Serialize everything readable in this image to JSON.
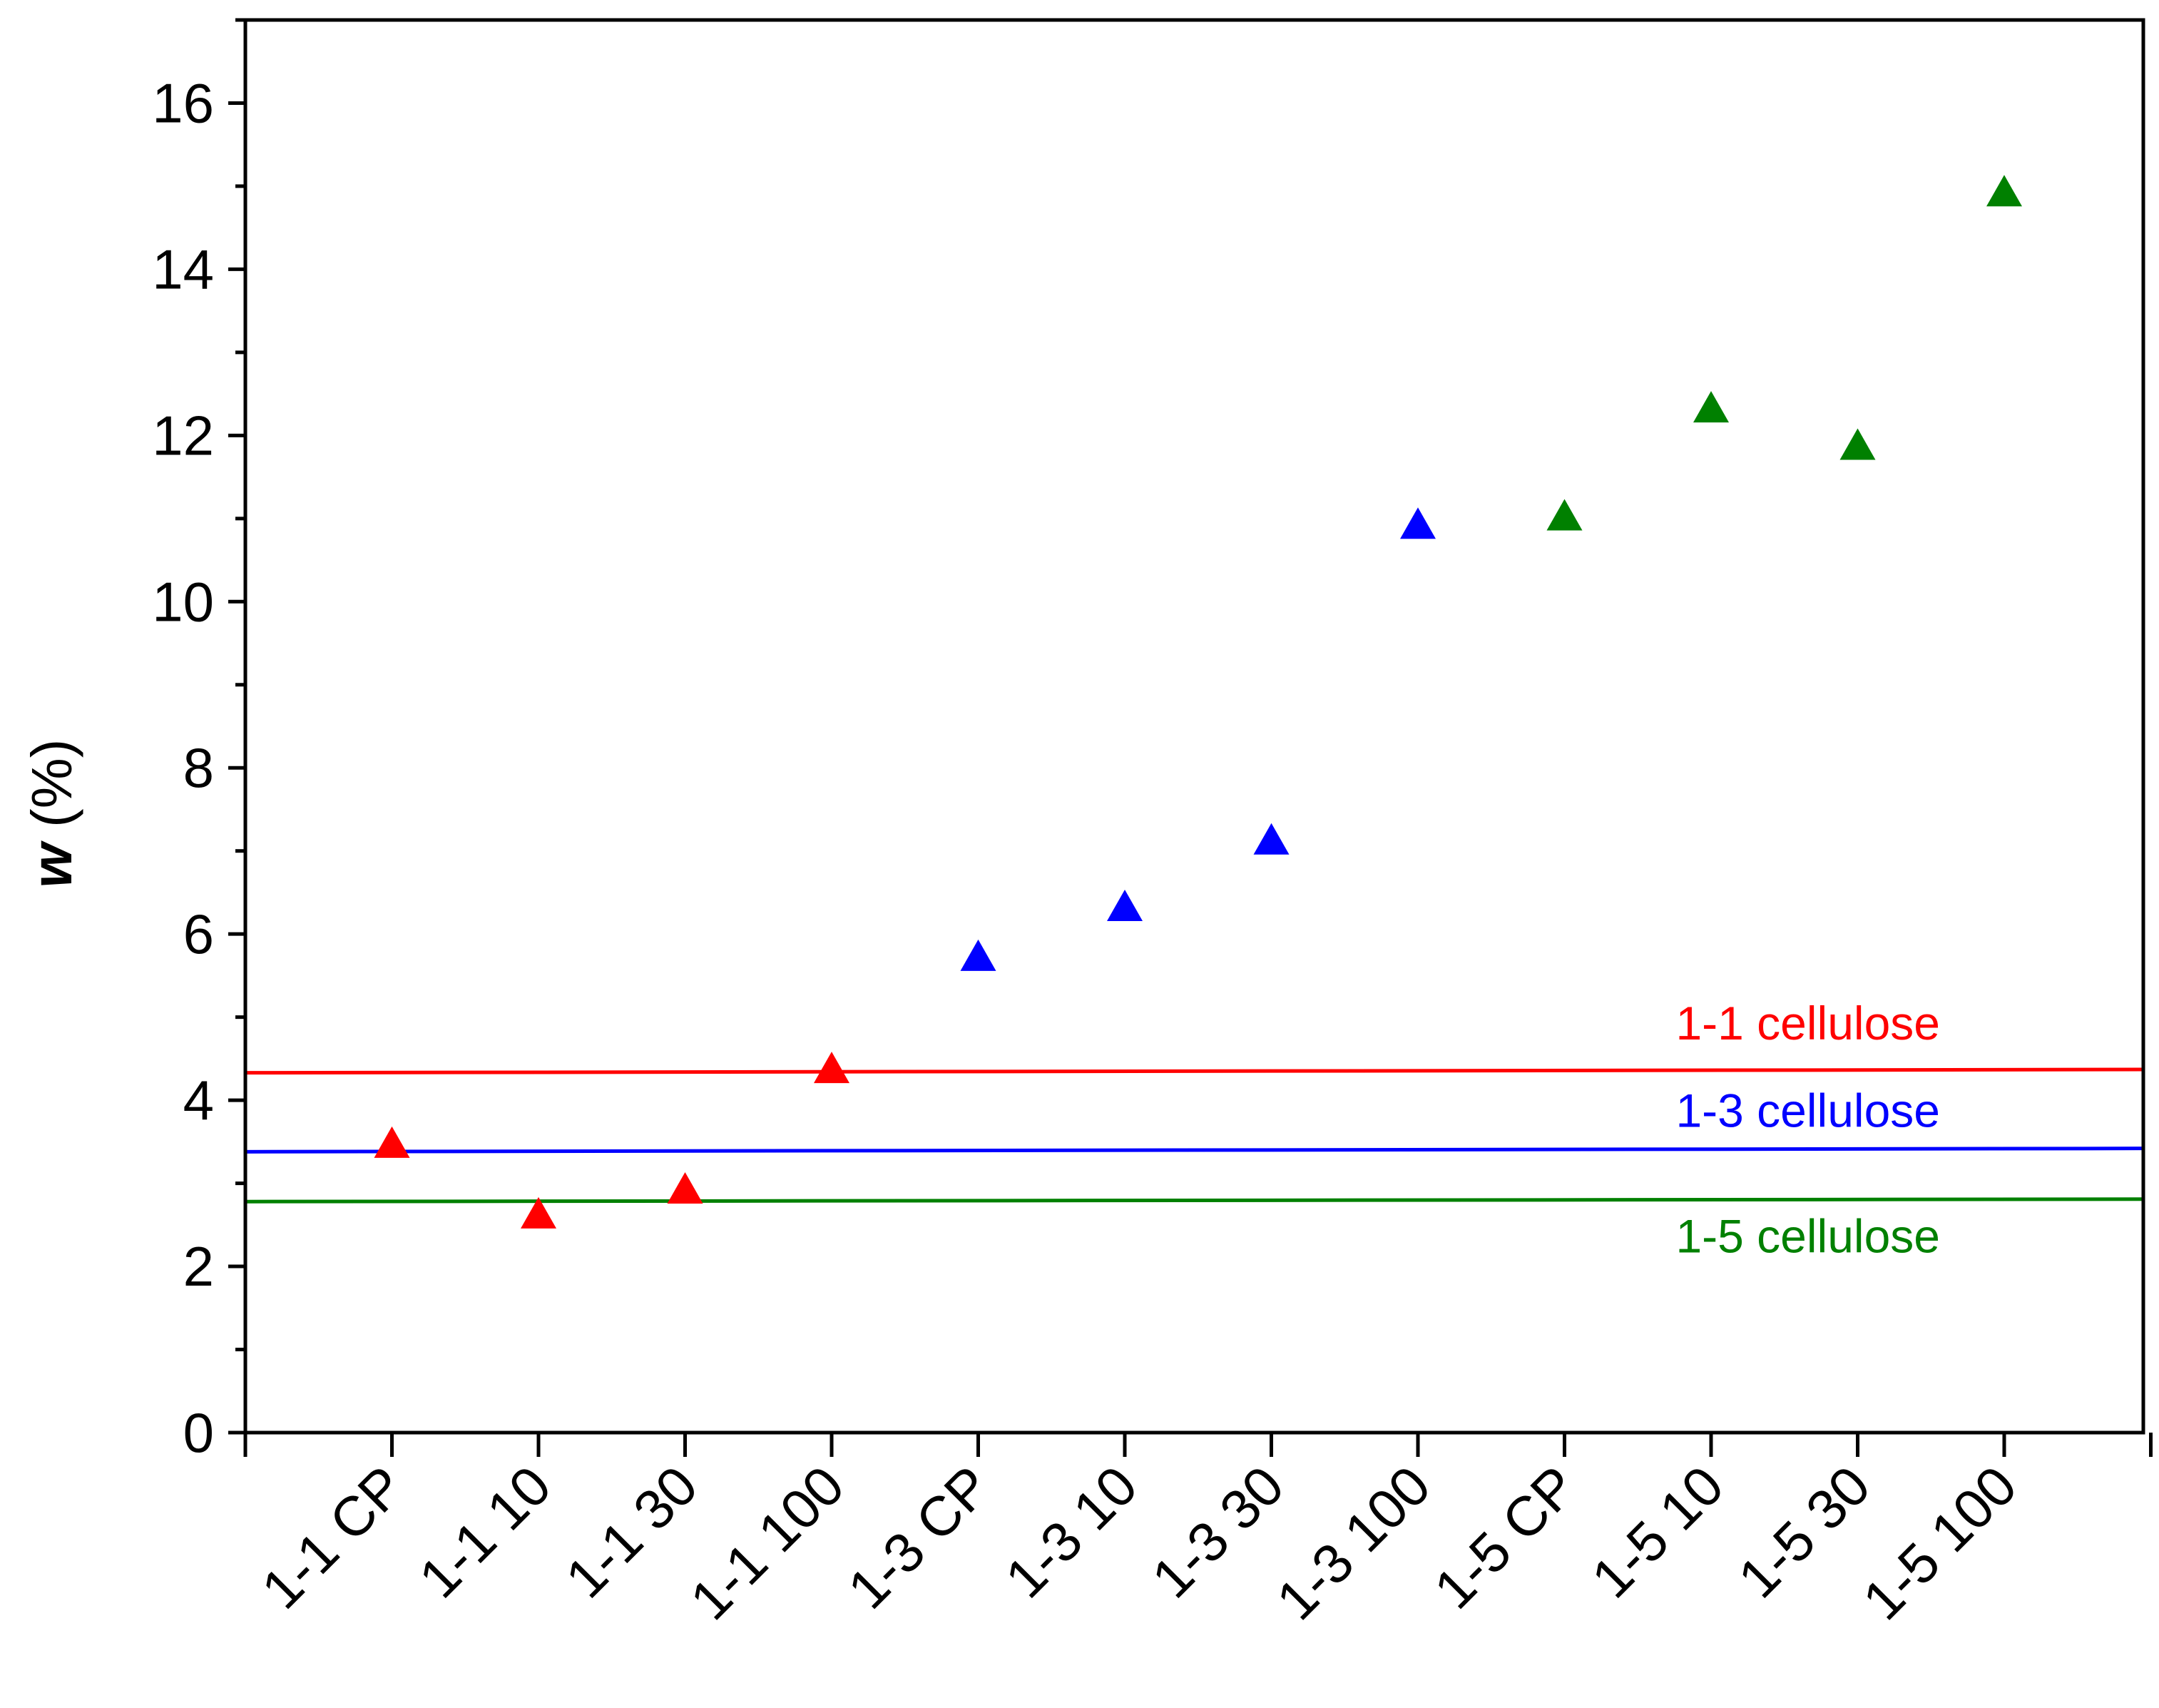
{
  "chart_data": {
    "type": "scatter",
    "title": "",
    "xlabel": "",
    "ylabel": "w (%)",
    "ylabel_var": "w",
    "ylabel_unit": " (%)",
    "ylim": [
      0,
      17
    ],
    "yticks": [
      0,
      2,
      4,
      6,
      8,
      10,
      12,
      14,
      16
    ],
    "ytick_labels": [
      "0",
      "2",
      "4",
      "6",
      "8",
      "10",
      "12",
      "14",
      "16"
    ],
    "categories": [
      "1-1 CP",
      "1-1 10",
      "1-1 30",
      "1-1 100",
      "1-3 CP",
      "1-3 10",
      "1-3 30",
      "1-3 100",
      "1-5 CP",
      "1-5 10",
      "1-5 30",
      "1-5 100"
    ],
    "series": [
      {
        "name": "1-1",
        "color": "#ff0000",
        "marker": "triangle",
        "categories": [
          "1-1 CP",
          "1-1 10",
          "1-1 30",
          "1-1 100"
        ],
        "values": [
          3.45,
          2.6,
          2.9,
          4.35
        ]
      },
      {
        "name": "1-3",
        "color": "#0000ff",
        "marker": "triangle",
        "categories": [
          "1-3 CP",
          "1-3 10",
          "1-3 30",
          "1-3 100"
        ],
        "values": [
          5.7,
          6.3,
          7.1,
          10.9
        ]
      },
      {
        "name": "1-5",
        "color": "#008000",
        "marker": "triangle",
        "categories": [
          "1-5 CP",
          "1-5 10",
          "1-5 30",
          "1-5 100"
        ],
        "values": [
          11.0,
          12.3,
          11.85,
          14.9
        ]
      }
    ],
    "reference_lines": [
      {
        "label": "1-1 cellulose",
        "color": "#ff0000",
        "y_start": 4.33,
        "y_end": 4.37
      },
      {
        "label": "1-3 cellulose",
        "color": "#0000ff",
        "y_start": 3.38,
        "y_end": 3.42
      },
      {
        "label": "1-5 cellulose",
        "color": "#008000",
        "y_start": 2.78,
        "y_end": 2.81
      }
    ],
    "grid": false,
    "legend": "none"
  }
}
